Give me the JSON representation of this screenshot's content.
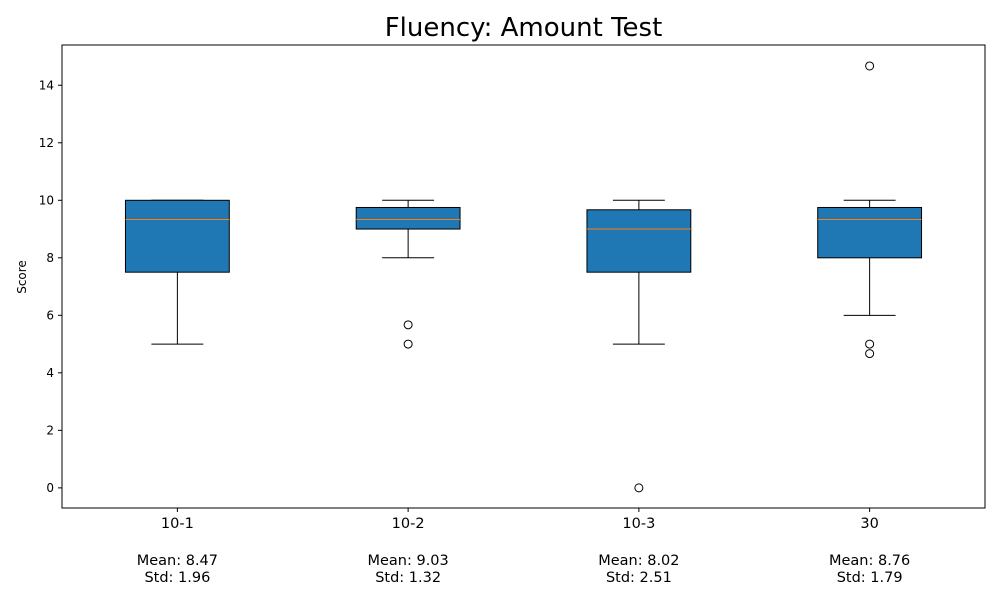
{
  "chart_data": {
    "type": "box",
    "title": "Fluency: Amount Test",
    "ylabel": "Score",
    "xlabel": "",
    "ylim": [
      -0.7,
      15.4
    ],
    "yticks": [
      0,
      2,
      4,
      6,
      8,
      10,
      12,
      14
    ],
    "grid": false,
    "box_color": "#1f77b4",
    "median_color": "#ff7f0e",
    "categories": [
      "10-1",
      "10-2",
      "10-3",
      "30"
    ],
    "boxes": [
      {
        "category": "10-1",
        "whisker_low": 5,
        "q1": 7.5,
        "median": 9.33,
        "q3": 10,
        "whisker_high": 10,
        "outliers": []
      },
      {
        "category": "10-2",
        "whisker_low": 8,
        "q1": 9,
        "median": 9.33,
        "q3": 9.75,
        "whisker_high": 10,
        "outliers": [
          5.67,
          5
        ]
      },
      {
        "category": "10-3",
        "whisker_low": 5,
        "q1": 7.5,
        "median": 9,
        "q3": 9.67,
        "whisker_high": 10,
        "outliers": [
          0
        ]
      },
      {
        "category": "30",
        "whisker_low": 6,
        "q1": 8,
        "median": 9.33,
        "q3": 9.75,
        "whisker_high": 10,
        "outliers": [
          14.67,
          5,
          4.67
        ]
      }
    ],
    "stats": [
      {
        "mean": "Mean: 8.47",
        "std": "Std: 1.96"
      },
      {
        "mean": "Mean: 9.03",
        "std": "Std: 1.32"
      },
      {
        "mean": "Mean: 8.02",
        "std": "Std: 2.51"
      },
      {
        "mean": "Mean: 8.76",
        "std": "Std: 1.79"
      }
    ]
  }
}
